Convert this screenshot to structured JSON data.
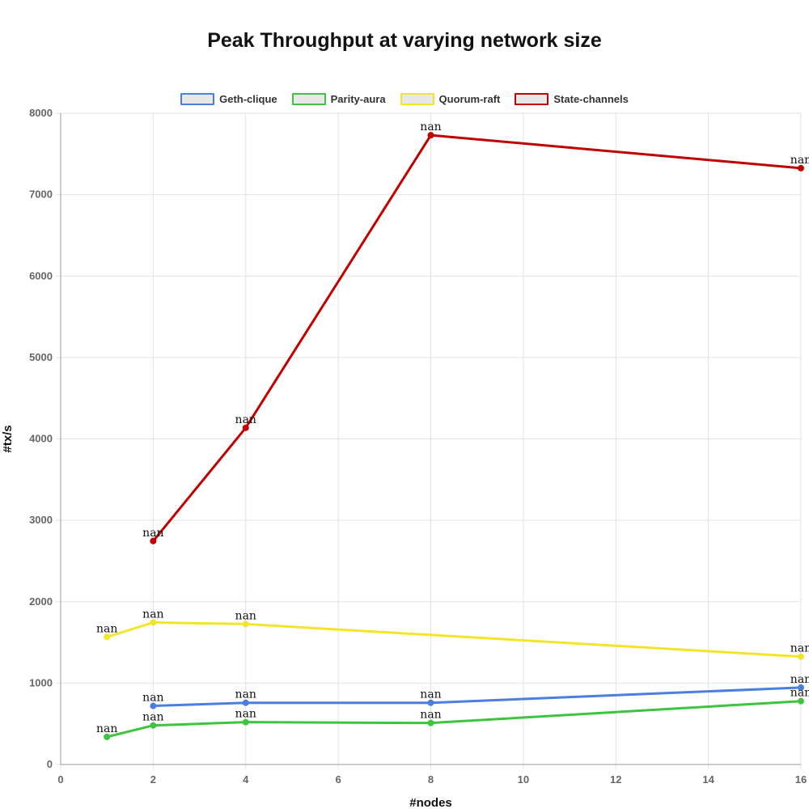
{
  "chart_data": {
    "type": "line",
    "title": "Peak Throughput at varying network size",
    "xlabel": "#nodes",
    "ylabel": "#tx/s",
    "xlim": [
      0,
      16
    ],
    "ylim": [
      0,
      8000
    ],
    "x_ticks": [
      "0",
      "2",
      "4",
      "6",
      "8",
      "10",
      "12",
      "14",
      "16"
    ],
    "y_ticks": [
      "0",
      "1000",
      "2000",
      "3000",
      "4000",
      "5000",
      "6000",
      "7000",
      "8000"
    ],
    "grid": true,
    "legend_position": "top",
    "point_label_text": "nan",
    "series": [
      {
        "name": "Geth-clique",
        "color": "#4a7fe0",
        "points": [
          [
            2,
            720
          ],
          [
            4,
            758
          ],
          [
            8,
            758
          ],
          [
            16,
            945
          ]
        ]
      },
      {
        "name": "Parity-aura",
        "color": "#3ec43e",
        "points": [
          [
            1,
            339
          ],
          [
            2,
            480
          ],
          [
            4,
            520
          ],
          [
            8,
            510
          ],
          [
            16,
            778
          ]
        ]
      },
      {
        "name": "Quorum-raft",
        "color": "#f5e52a",
        "points": [
          [
            1,
            1566
          ],
          [
            2,
            1745
          ],
          [
            4,
            1725
          ],
          [
            16,
            1325
          ]
        ]
      },
      {
        "name": "State-channels",
        "color": "#c00000",
        "points": [
          [
            2,
            2745
          ],
          [
            4,
            4136
          ],
          [
            8,
            7730
          ],
          [
            16,
            7325
          ]
        ]
      }
    ]
  }
}
